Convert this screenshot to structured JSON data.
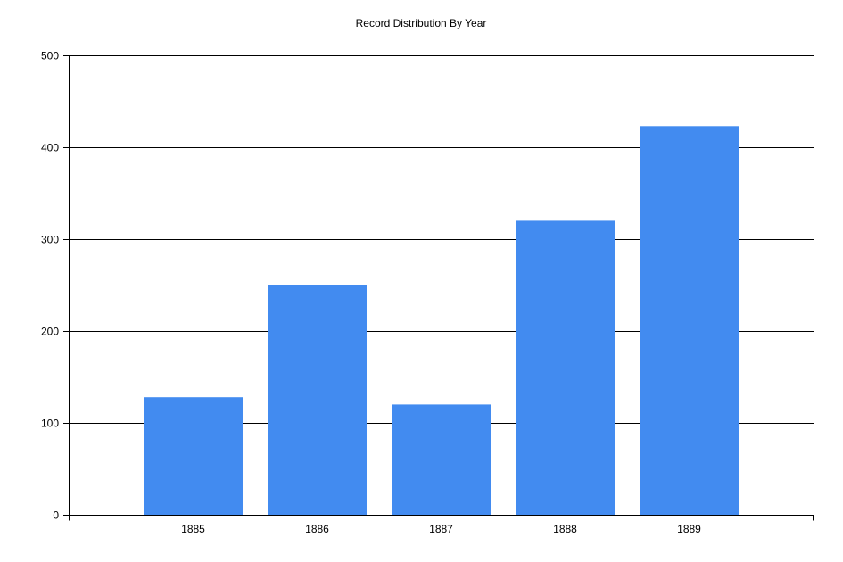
{
  "chart_data": {
    "type": "bar",
    "title": "Record Distribution By Year",
    "xlabel": "",
    "ylabel": "",
    "categories": [
      "1885",
      "1886",
      "1887",
      "1888",
      "1889"
    ],
    "values": [
      128,
      250,
      120,
      320,
      423
    ],
    "ylim": [
      0,
      500
    ],
    "yticks": [
      0,
      100,
      200,
      300,
      400,
      500
    ],
    "grid": true,
    "legend": "none",
    "bar_color": "#428BF0"
  }
}
